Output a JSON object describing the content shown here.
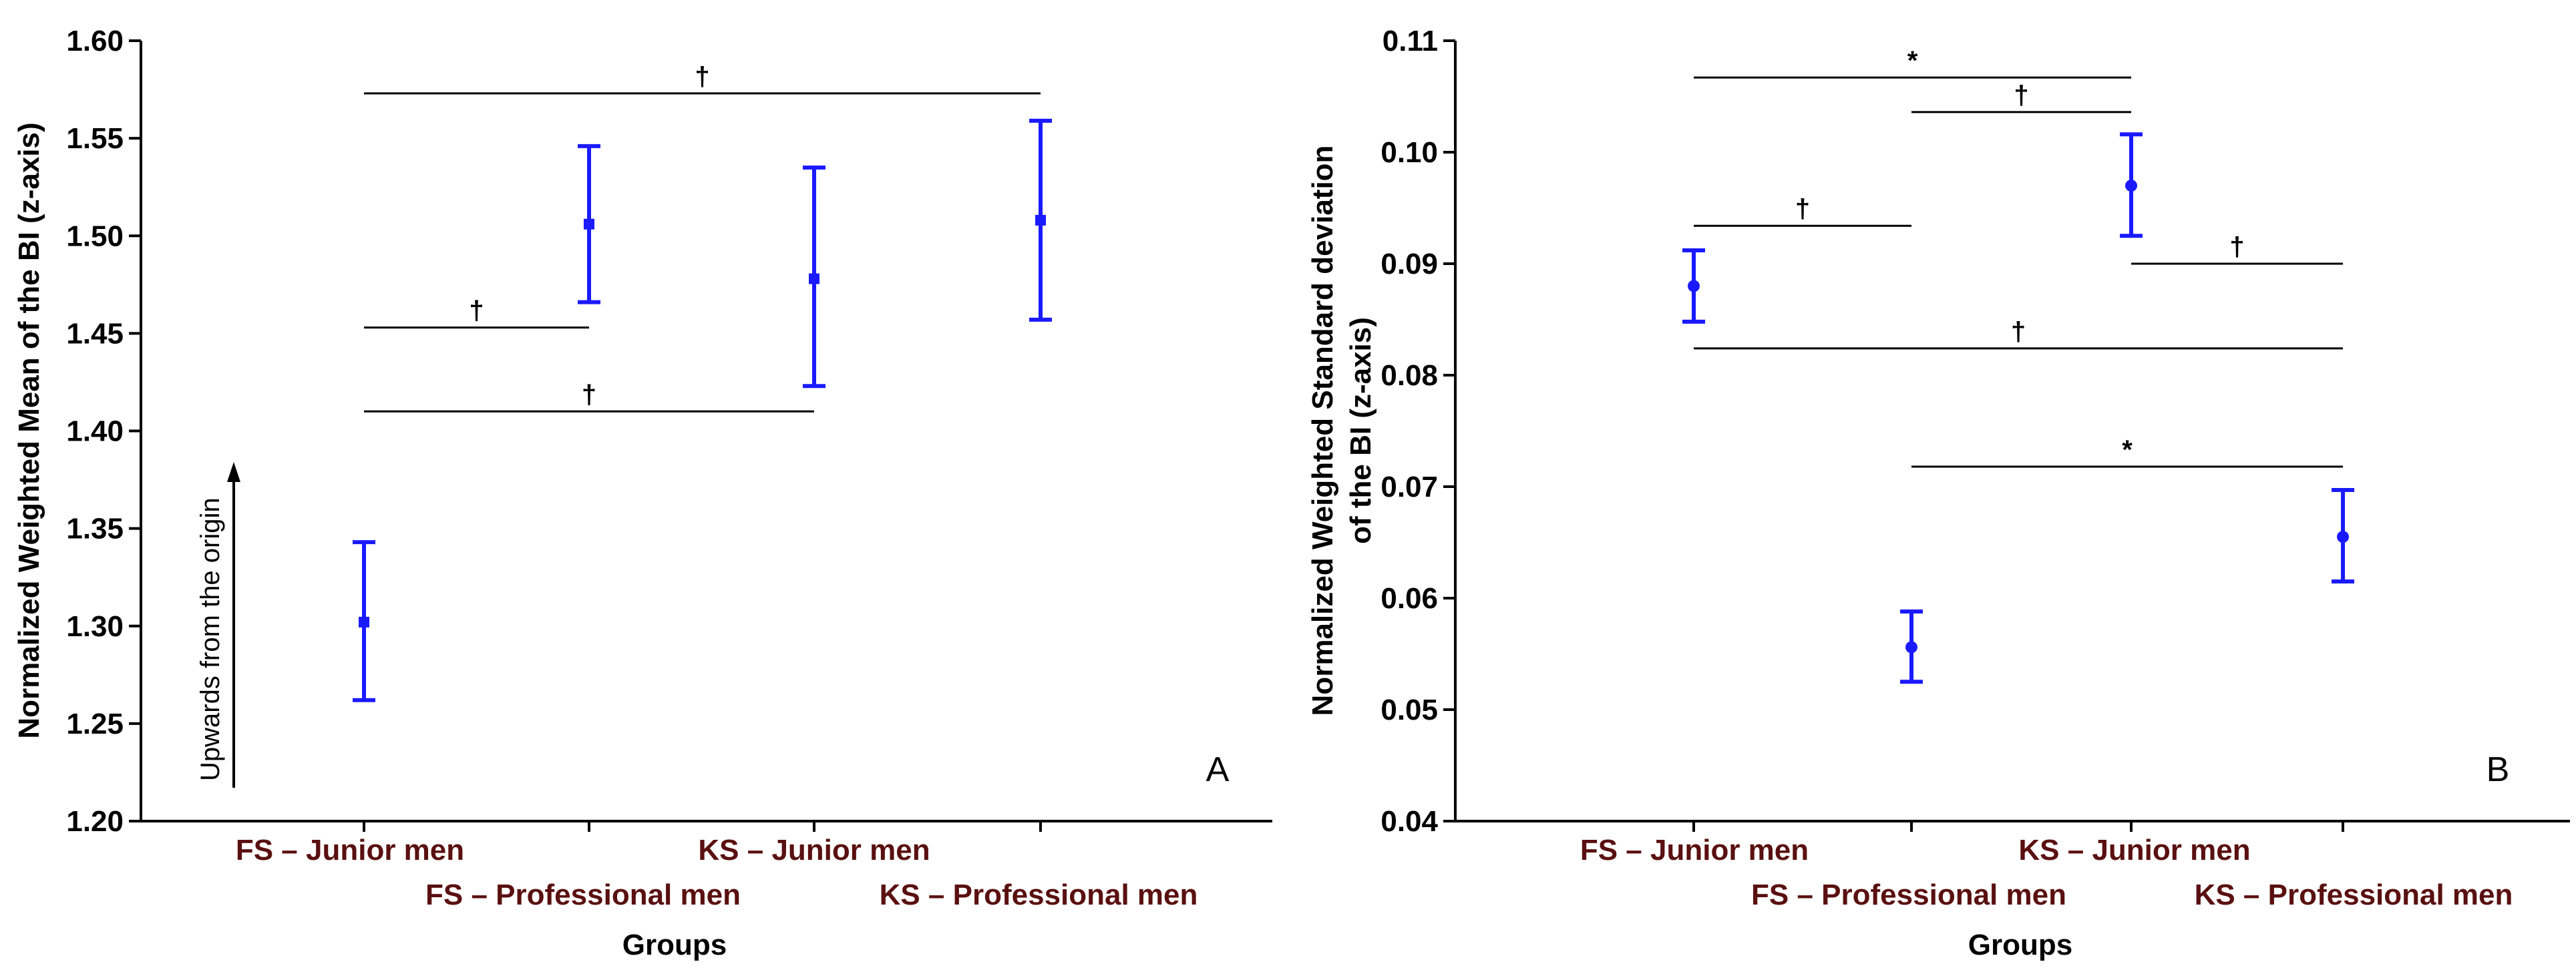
{
  "chart_data": [
    {
      "type": "scatter",
      "panel_letter": "A",
      "xlabel": "Groups",
      "ylabel": "Normalized Weighted Mean of the BI (z-axis)",
      "ylim": [
        1.2,
        1.6
      ],
      "yticks": [
        "1.20",
        "1.25",
        "1.30",
        "1.35",
        "1.40",
        "1.45",
        "1.50",
        "1.55",
        "1.60"
      ],
      "categories": [
        "FS – Junior men",
        "FS – Professional men",
        "KS – Junior men",
        "KS – Professional men"
      ],
      "series": [
        {
          "name": "mean",
          "marker": "square",
          "values": [
            1.302,
            1.506,
            1.478,
            1.508
          ],
          "lower": [
            1.262,
            1.466,
            1.423,
            1.457
          ],
          "upper": [
            1.343,
            1.546,
            1.535,
            1.559
          ]
        }
      ],
      "annotation": "Upwards from the origin",
      "significance": [
        {
          "from": 0,
          "to": 3,
          "y": 1.573,
          "symbol": "†"
        },
        {
          "from": 0,
          "to": 1,
          "y": 1.453,
          "symbol": "†"
        },
        {
          "from": 0,
          "to": 2,
          "y": 1.41,
          "symbol": "†"
        }
      ]
    },
    {
      "type": "scatter",
      "panel_letter": "B",
      "xlabel": "Groups",
      "ylabel": "Normalized Weighted Standard deviation of the BI (z-axis)",
      "ylabel_lines": [
        "Normalized Weighted Standard deviation",
        "of the BI (z-axis)"
      ],
      "ylim": [
        0.04,
        0.11
      ],
      "yticks": [
        "0.04",
        "0.05",
        "0.06",
        "0.07",
        "0.08",
        "0.09",
        "0.10",
        "0.11"
      ],
      "categories": [
        "FS – Junior men",
        "FS – Professional men",
        "KS – Junior men",
        "KS – Professional men"
      ],
      "series": [
        {
          "name": "sd",
          "marker": "circle",
          "values": [
            0.088,
            0.0556,
            0.097,
            0.0655
          ],
          "lower": [
            0.0848,
            0.0525,
            0.0925,
            0.0615
          ],
          "upper": [
            0.0912,
            0.0588,
            0.1016,
            0.0697
          ]
        }
      ],
      "significance": [
        {
          "from": 0,
          "to": 2,
          "y": 0.1067,
          "symbol": "*"
        },
        {
          "from": 1,
          "to": 2,
          "y": 0.1036,
          "symbol": "†"
        },
        {
          "from": 0,
          "to": 1,
          "y": 0.0934,
          "symbol": "†"
        },
        {
          "from": 2,
          "to": 3,
          "y": 0.09,
          "symbol": "†"
        },
        {
          "from": 0,
          "to": 3,
          "y": 0.0824,
          "symbol": "†"
        },
        {
          "from": 1,
          "to": 3,
          "y": 0.0718,
          "symbol": "*"
        }
      ]
    }
  ]
}
